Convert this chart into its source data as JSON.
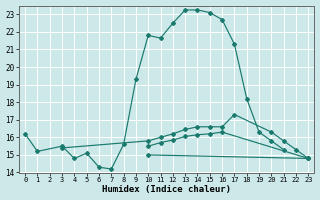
{
  "xlabel": "Humidex (Indice chaleur)",
  "xlim": [
    -0.5,
    23.5
  ],
  "ylim": [
    14,
    23.5
  ],
  "yticks": [
    14,
    15,
    16,
    17,
    18,
    19,
    20,
    21,
    22,
    23
  ],
  "xticks": [
    0,
    1,
    2,
    3,
    4,
    5,
    6,
    7,
    8,
    9,
    10,
    11,
    12,
    13,
    14,
    15,
    16,
    17,
    18,
    19,
    20,
    21,
    22,
    23
  ],
  "bg_color": "#cce8e8",
  "line_color": "#1a7a6e",
  "line1_x": [
    0,
    1,
    3,
    4,
    5,
    6,
    7,
    8,
    9,
    10,
    11,
    12,
    13,
    14,
    15,
    16,
    17,
    18,
    19,
    20,
    21
  ],
  "line1_y": [
    16.2,
    15.2,
    15.5,
    14.8,
    15.1,
    14.3,
    14.2,
    15.6,
    19.3,
    21.8,
    21.65,
    22.5,
    23.25,
    23.25,
    23.1,
    22.7,
    21.3,
    18.2,
    16.3,
    15.8,
    15.3
  ],
  "line2_x": [
    3,
    10,
    11,
    12,
    13,
    14,
    15,
    16,
    17,
    20,
    21,
    22,
    23
  ],
  "line2_y": [
    15.4,
    15.8,
    16.0,
    16.2,
    16.45,
    16.6,
    16.6,
    16.6,
    17.3,
    16.3,
    15.8,
    15.3,
    14.8
  ],
  "line3_x": [
    10,
    11,
    12,
    13,
    14,
    15,
    16,
    23
  ],
  "line3_y": [
    15.5,
    15.7,
    15.85,
    16.05,
    16.15,
    16.2,
    16.3,
    14.8
  ],
  "line4_x": [
    10,
    23
  ],
  "line4_y": [
    15.0,
    14.8
  ]
}
